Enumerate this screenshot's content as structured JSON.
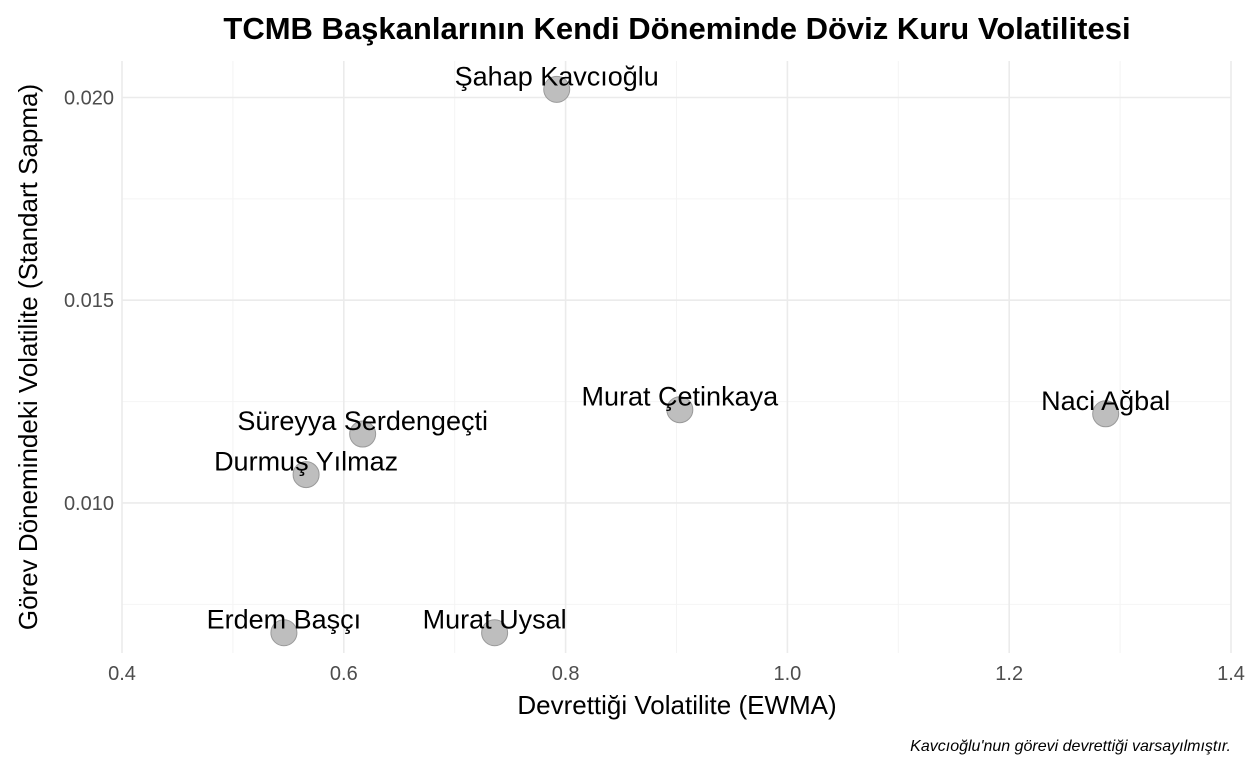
{
  "chart_data": {
    "type": "scatter",
    "title": "TCMB Başkanlarının Kendi Döneminde Döviz Kuru Volatilitesi",
    "xlabel": "Devrettiği Volatilite (EWMA)",
    "ylabel": "Görev Dönemindeki Volatilite (Standart Sapma)",
    "caption": "Kavcıoğlu'nun görevi devrettiği varsayılmıştır.",
    "xlim": [
      0.4,
      1.4
    ],
    "ylim": [
      0.0063,
      0.0209
    ],
    "x_ticks": [
      0.4,
      0.6,
      0.8,
      1.0,
      1.2,
      1.4
    ],
    "x_tick_labels": [
      "0.4",
      "0.6",
      "0.8",
      "1.0",
      "1.2",
      "1.4"
    ],
    "y_ticks": [
      0.01,
      0.015,
      0.02
    ],
    "y_tick_labels": [
      "0.010",
      "0.015",
      "0.020"
    ],
    "grid": true,
    "legend": "none",
    "point_color": "#bebebe",
    "points": [
      {
        "label": "Şahap Kavcıoğlu",
        "x": 0.792,
        "y": 0.0202
      },
      {
        "label": "Naci Ağbal",
        "x": 1.287,
        "y": 0.0122
      },
      {
        "label": "Murat Çetinkaya",
        "x": 0.903,
        "y": 0.0123
      },
      {
        "label": "Süreyya Serdengeçti",
        "x": 0.617,
        "y": 0.0117
      },
      {
        "label": "Durmuş Yılmaz",
        "x": 0.566,
        "y": 0.0107
      },
      {
        "label": "Erdem Başçı",
        "x": 0.546,
        "y": 0.0068
      },
      {
        "label": "Murat Uysal",
        "x": 0.736,
        "y": 0.0068
      }
    ]
  }
}
